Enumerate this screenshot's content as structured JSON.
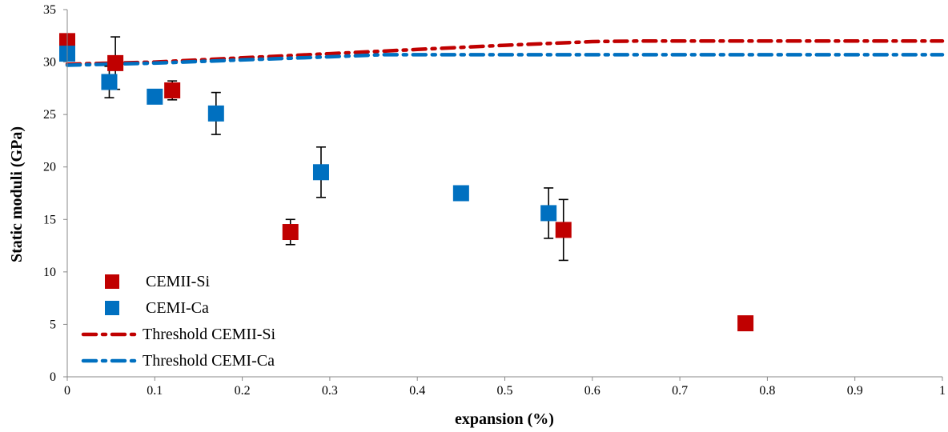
{
  "chart_data": {
    "type": "scatter",
    "title": "",
    "xlabel": "expansion (%)",
    "ylabel": "Static moduli (GPa)",
    "xlim": [
      0,
      1
    ],
    "ylim": [
      0,
      35
    ],
    "x_ticks": [
      "0",
      "0.1",
      "0.2",
      "0.3",
      "0.4",
      "0.5",
      "0.6",
      "0.7",
      "0.8",
      "0.9",
      "1"
    ],
    "y_ticks": [
      "0",
      "5",
      "10",
      "15",
      "20",
      "25",
      "30",
      "35"
    ],
    "grid": false,
    "legend_position": "bottom-left",
    "series": [
      {
        "name": "CEMII-Si",
        "kind": "points",
        "marker": "square",
        "color": "#C00000",
        "points": [
          {
            "x": 0.0,
            "y": 32.0
          },
          {
            "x": 0.055,
            "y": 29.9,
            "err": 2.5
          },
          {
            "x": 0.12,
            "y": 27.3,
            "err": 0.9
          },
          {
            "x": 0.255,
            "y": 13.8,
            "err": 1.2
          },
          {
            "x": 0.567,
            "y": 14.0,
            "err": 2.9
          },
          {
            "x": 0.775,
            "y": 5.1
          }
        ]
      },
      {
        "name": "CEMI-Ca",
        "kind": "points",
        "marker": "square",
        "color": "#0070C0",
        "points": [
          {
            "x": 0.0,
            "y": 30.8
          },
          {
            "x": 0.048,
            "y": 28.1,
            "err": 1.5
          },
          {
            "x": 0.1,
            "y": 26.7
          },
          {
            "x": 0.17,
            "y": 25.1,
            "err": 2.0
          },
          {
            "x": 0.29,
            "y": 19.5,
            "err": 2.4
          },
          {
            "x": 0.45,
            "y": 17.5
          },
          {
            "x": 0.55,
            "y": 15.6,
            "err": 2.4
          }
        ]
      },
      {
        "name": "Threshold CEMII-Si",
        "kind": "line",
        "style": "dash-dot",
        "color": "#C00000",
        "points": [
          {
            "x": 0.0,
            "y": 29.8
          },
          {
            "x": 0.05,
            "y": 29.9
          },
          {
            "x": 0.1,
            "y": 30.0
          },
          {
            "x": 0.2,
            "y": 30.4
          },
          {
            "x": 0.3,
            "y": 30.8
          },
          {
            "x": 0.4,
            "y": 31.2
          },
          {
            "x": 0.5,
            "y": 31.6
          },
          {
            "x": 0.6,
            "y": 31.95
          },
          {
            "x": 0.65,
            "y": 32.0
          },
          {
            "x": 1.0,
            "y": 32.0
          }
        ]
      },
      {
        "name": "Threshold CEMI-Ca",
        "kind": "line",
        "style": "dash-dot",
        "color": "#0070C0",
        "points": [
          {
            "x": 0.0,
            "y": 29.7
          },
          {
            "x": 0.05,
            "y": 29.8
          },
          {
            "x": 0.1,
            "y": 29.9
          },
          {
            "x": 0.2,
            "y": 30.2
          },
          {
            "x": 0.3,
            "y": 30.5
          },
          {
            "x": 0.36,
            "y": 30.7
          },
          {
            "x": 1.0,
            "y": 30.7
          }
        ]
      }
    ]
  }
}
